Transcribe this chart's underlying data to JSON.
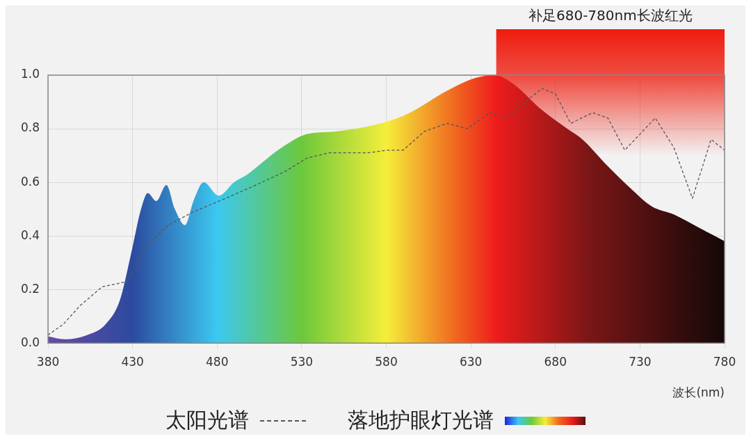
{
  "chart_data": {
    "type": "line",
    "xlabel": "波长(nm)",
    "xlim": [
      380,
      780
    ],
    "xticks": [
      380,
      430,
      480,
      530,
      580,
      630,
      680,
      730,
      780
    ],
    "ylim": [
      0,
      1
    ],
    "yticks": [
      {
        "value": 0,
        "label": "0.0"
      },
      {
        "value": 0.2,
        "label": "0.2"
      },
      {
        "value": 0.4,
        "label": "0.4"
      },
      {
        "value": 0.6,
        "label": "0.6"
      },
      {
        "value": 0.8,
        "label": "0.8"
      },
      {
        "value": 1,
        "label": "1.0"
      }
    ],
    "grid": true,
    "legend": "bottom",
    "bands": [
      {
        "axis": "x",
        "from": 645,
        "to": 780,
        "label": "补足680-780nm长波红光",
        "color": "#ee1c0e"
      }
    ],
    "series": [
      {
        "name": "太阳光谱",
        "type": "line",
        "line_style": "dashed",
        "color": "#555555",
        "x": [
          380,
          389,
          399,
          412,
          427,
          438,
          451,
          466,
          485,
          503,
          520,
          533,
          546,
          569,
          581,
          590,
          602.5,
          616,
          628,
          641,
          650,
          672,
          680,
          689,
          702,
          711,
          721,
          739,
          750,
          761,
          772,
          780
        ],
        "values": [
          0.03,
          0.07,
          0.14,
          0.21,
          0.23,
          0.36,
          0.44,
          0.49,
          0.54,
          0.59,
          0.64,
          0.69,
          0.71,
          0.71,
          0.72,
          0.72,
          0.79,
          0.82,
          0.8,
          0.86,
          0.84,
          0.95,
          0.93,
          0.82,
          0.86,
          0.84,
          0.72,
          0.84,
          0.73,
          0.54,
          0.76,
          0.72
        ]
      },
      {
        "name": "落地护眼灯光谱",
        "type": "area",
        "color": "#ee1c1c",
        "x": [
          380,
          390,
          403,
          414,
          422.5,
          429,
          435,
          439,
          444,
          450,
          455,
          461,
          466,
          472,
          481,
          490,
          498,
          516,
          533,
          550,
          577,
          594,
          615.5,
          633,
          644,
          654.5,
          672,
          687,
          696,
          711,
          724,
          737,
          750,
          765,
          780
        ],
        "values": [
          0.025,
          0.014,
          0.03,
          0.07,
          0.16,
          0.33,
          0.5,
          0.56,
          0.53,
          0.59,
          0.5,
          0.44,
          0.53,
          0.6,
          0.55,
          0.6,
          0.63,
          0.72,
          0.78,
          0.79,
          0.82,
          0.86,
          0.94,
          0.99,
          1.0,
          0.97,
          0.87,
          0.8,
          0.76,
          0.66,
          0.58,
          0.51,
          0.48,
          0.43,
          0.38
        ]
      }
    ]
  }
}
